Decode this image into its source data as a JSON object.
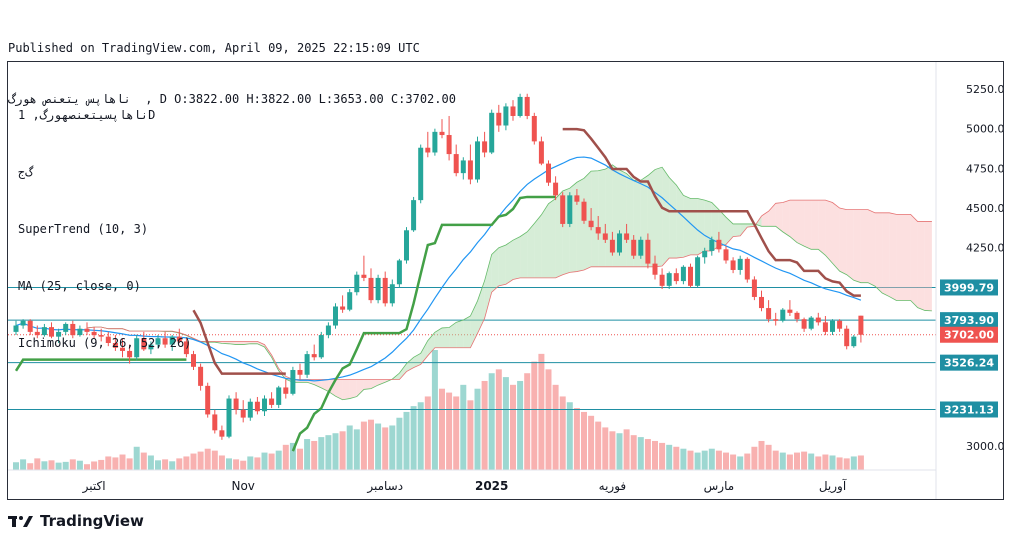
{
  "header": {
    "published": "Published on TradingView.com, April 09, 2025 22:15:09 UTC",
    "symbol_line": "ناهاپس یتعنص هورگ  , D O:3822.00 H:3822.00 L:3653.00 C:3702.00"
  },
  "legend": {
    "title": "ناهاپسیتعنصهورگ, 1D",
    "subtitle": "گ‌ج",
    "indicators": [
      "SuperTrend (10, 3)",
      "MA (25, close, 0)",
      "Ichimoku (9, 26, 52, 26)"
    ]
  },
  "branding": {
    "name": "TradingView"
  },
  "colors": {
    "up": "#26a69a",
    "down": "#ef5350",
    "supertrend_up": "#43a047",
    "supertrend_down": "#a0504b",
    "ma": "#2196f3",
    "levels": "#1f8fa3"
  },
  "chart_data": {
    "type": "candlestick",
    "timeframe": "1D",
    "y_ticks": [
      3000,
      4250,
      4500,
      4750,
      5000,
      5250
    ],
    "ylim": [
      2850,
      5420
    ],
    "x_ticks": [
      "اکتبر",
      "Nov",
      "دسامبر",
      "2025",
      "فوریه",
      "مارس",
      "آوریل"
    ],
    "last": {
      "open": 3822,
      "high": 3822,
      "low": 3653,
      "close": 3702
    },
    "price_labels": [
      {
        "value": "3999.79",
        "kind": "level"
      },
      {
        "value": "3793.90",
        "kind": "level"
      },
      {
        "value": "3702.00",
        "kind": "last"
      },
      {
        "value": "3526.24",
        "kind": "level"
      },
      {
        "value": "3231.13",
        "kind": "level"
      }
    ],
    "level_values": [
      3999.79,
      3793.9,
      3526.24,
      3231.13
    ],
    "candles_ohlc": [
      [
        3720,
        3790,
        3700,
        3760
      ],
      [
        3760,
        3800,
        3740,
        3790
      ],
      [
        3790,
        3800,
        3700,
        3720
      ],
      [
        3720,
        3760,
        3680,
        3700
      ],
      [
        3700,
        3770,
        3690,
        3750
      ],
      [
        3750,
        3780,
        3680,
        3690
      ],
      [
        3690,
        3740,
        3650,
        3720
      ],
      [
        3720,
        3780,
        3700,
        3770
      ],
      [
        3770,
        3790,
        3680,
        3700
      ],
      [
        3700,
        3760,
        3690,
        3740
      ],
      [
        3740,
        3780,
        3700,
        3720
      ],
      [
        3720,
        3750,
        3680,
        3700
      ],
      [
        3700,
        3740,
        3660,
        3690
      ],
      [
        3690,
        3720,
        3630,
        3650
      ],
      [
        3650,
        3700,
        3600,
        3620
      ],
      [
        3620,
        3680,
        3560,
        3600
      ],
      [
        3600,
        3640,
        3520,
        3560
      ],
      [
        3560,
        3700,
        3540,
        3680
      ],
      [
        3680,
        3720,
        3600,
        3610
      ],
      [
        3610,
        3660,
        3580,
        3640
      ],
      [
        3640,
        3700,
        3620,
        3680
      ],
      [
        3680,
        3720,
        3620,
        3640
      ],
      [
        3640,
        3700,
        3600,
        3690
      ],
      [
        3690,
        3740,
        3650,
        3660
      ],
      [
        3660,
        3680,
        3560,
        3580
      ],
      [
        3580,
        3600,
        3480,
        3500
      ],
      [
        3500,
        3520,
        3350,
        3380
      ],
      [
        3380,
        3400,
        3180,
        3200
      ],
      [
        3200,
        3230,
        3080,
        3100
      ],
      [
        3100,
        3130,
        3040,
        3060
      ],
      [
        3060,
        3320,
        3050,
        3300
      ],
      [
        3300,
        3340,
        3200,
        3230
      ],
      [
        3230,
        3290,
        3150,
        3180
      ],
      [
        3180,
        3300,
        3160,
        3280
      ],
      [
        3280,
        3310,
        3200,
        3220
      ],
      [
        3220,
        3320,
        3190,
        3300
      ],
      [
        3300,
        3340,
        3240,
        3260
      ],
      [
        3260,
        3380,
        3240,
        3370
      ],
      [
        3370,
        3420,
        3300,
        3330
      ],
      [
        3330,
        3500,
        3320,
        3480
      ],
      [
        3480,
        3520,
        3420,
        3450
      ],
      [
        3450,
        3600,
        3430,
        3580
      ],
      [
        3580,
        3640,
        3540,
        3560
      ],
      [
        3560,
        3720,
        3550,
        3700
      ],
      [
        3700,
        3780,
        3680,
        3760
      ],
      [
        3760,
        3900,
        3740,
        3880
      ],
      [
        3880,
        3950,
        3840,
        3860
      ],
      [
        3860,
        3990,
        3850,
        3970
      ],
      [
        3970,
        4100,
        3950,
        4080
      ],
      [
        4080,
        4200,
        4040,
        4060
      ],
      [
        4060,
        4120,
        3900,
        3920
      ],
      [
        3920,
        4080,
        3900,
        4060
      ],
      [
        4060,
        4100,
        3880,
        3900
      ],
      [
        3900,
        4050,
        3880,
        4020
      ],
      [
        4020,
        4180,
        4000,
        4170
      ],
      [
        4170,
        4380,
        4150,
        4360
      ],
      [
        4360,
        4570,
        4350,
        4550
      ],
      [
        4550,
        4900,
        4530,
        4880
      ],
      [
        4880,
        4980,
        4820,
        4850
      ],
      [
        4850,
        5000,
        4830,
        4980
      ],
      [
        4980,
        5060,
        4940,
        4960
      ],
      [
        4960,
        5080,
        4800,
        4840
      ],
      [
        4840,
        4900,
        4700,
        4720
      ],
      [
        4720,
        4820,
        4680,
        4800
      ],
      [
        4800,
        4900,
        4650,
        4680
      ],
      [
        4680,
        4950,
        4660,
        4920
      ],
      [
        4920,
        4980,
        4820,
        4850
      ],
      [
        4850,
        5120,
        4840,
        5100
      ],
      [
        5100,
        5150,
        4980,
        5020
      ],
      [
        5020,
        5160,
        4990,
        5140
      ],
      [
        5140,
        5180,
        5050,
        5080
      ],
      [
        5080,
        5220,
        5070,
        5200
      ],
      [
        5200,
        5220,
        5060,
        5080
      ],
      [
        5080,
        5100,
        4900,
        4920
      ],
      [
        4920,
        4950,
        4770,
        4780
      ],
      [
        4780,
        4800,
        4640,
        4660
      ],
      [
        4660,
        4700,
        4550,
        4580
      ],
      [
        4580,
        4600,
        4380,
        4400
      ],
      [
        4400,
        4600,
        4380,
        4580
      ],
      [
        4580,
        4620,
        4520,
        4540
      ],
      [
        4540,
        4560,
        4400,
        4420
      ],
      [
        4420,
        4500,
        4360,
        4380
      ],
      [
        4380,
        4450,
        4300,
        4340
      ],
      [
        4340,
        4400,
        4280,
        4300
      ],
      [
        4300,
        4350,
        4200,
        4220
      ],
      [
        4220,
        4360,
        4200,
        4340
      ],
      [
        4340,
        4400,
        4280,
        4300
      ],
      [
        4300,
        4330,
        4180,
        4200
      ],
      [
        4200,
        4320,
        4180,
        4300
      ],
      [
        4300,
        4340,
        4120,
        4150
      ],
      [
        4150,
        4200,
        4050,
        4080
      ],
      [
        4080,
        4120,
        3990,
        4010
      ],
      [
        4010,
        4100,
        3990,
        4090
      ],
      [
        4090,
        4120,
        4020,
        4040
      ],
      [
        4040,
        4140,
        4020,
        4130
      ],
      [
        4130,
        4150,
        4000,
        4010
      ],
      [
        4010,
        4200,
        4000,
        4190
      ],
      [
        4190,
        4250,
        4150,
        4230
      ],
      [
        4230,
        4320,
        4200,
        4300
      ],
      [
        4300,
        4350,
        4220,
        4240
      ],
      [
        4240,
        4260,
        4150,
        4170
      ],
      [
        4170,
        4190,
        4090,
        4110
      ],
      [
        4110,
        4200,
        4080,
        4180
      ],
      [
        4180,
        4190,
        4030,
        4050
      ],
      [
        4050,
        4070,
        3920,
        3940
      ],
      [
        3940,
        3980,
        3850,
        3870
      ],
      [
        3870,
        3920,
        3780,
        3800
      ],
      [
        3800,
        3840,
        3760,
        3790
      ],
      [
        3790,
        3870,
        3780,
        3860
      ],
      [
        3860,
        3920,
        3820,
        3840
      ],
      [
        3840,
        3850,
        3780,
        3800
      ],
      [
        3800,
        3810,
        3720,
        3740
      ],
      [
        3740,
        3820,
        3730,
        3810
      ],
      [
        3810,
        3840,
        3760,
        3780
      ],
      [
        3780,
        3820,
        3700,
        3720
      ],
      [
        3720,
        3800,
        3700,
        3790
      ],
      [
        3790,
        3800,
        3720,
        3740
      ],
      [
        3740,
        3760,
        3610,
        3630
      ],
      [
        3630,
        3700,
        3620,
        3690
      ],
      [
        3822,
        3822,
        3653,
        3702
      ]
    ],
    "volumes": [
      40,
      55,
      35,
      60,
      45,
      50,
      38,
      42,
      55,
      48,
      30,
      44,
      52,
      70,
      65,
      80,
      60,
      120,
      90,
      75,
      50,
      55,
      45,
      60,
      70,
      85,
      95,
      110,
      100,
      75,
      60,
      55,
      48,
      70,
      65,
      90,
      85,
      100,
      130,
      140,
      110,
      160,
      150,
      170,
      180,
      190,
      200,
      230,
      210,
      250,
      260,
      240,
      220,
      230,
      270,
      300,
      330,
      350,
      380,
      620,
      420,
      400,
      380,
      440,
      360,
      420,
      460,
      500,
      520,
      480,
      440,
      460,
      500,
      560,
      600,
      520,
      440,
      380,
      350,
      320,
      300,
      280,
      250,
      220,
      200,
      190,
      210,
      180,
      170,
      160,
      150,
      140,
      130,
      120,
      110,
      100,
      90,
      100,
      110,
      100,
      90,
      80,
      70,
      85,
      120,
      150,
      130,
      100,
      90,
      80,
      90,
      95,
      85,
      70,
      80,
      75,
      65,
      60,
      70,
      75
    ],
    "overlays": [
      "SuperTrend (10, 3)",
      "MA (25, close, 0)",
      "Ichimoku (9, 26, 52, 26)"
    ]
  }
}
